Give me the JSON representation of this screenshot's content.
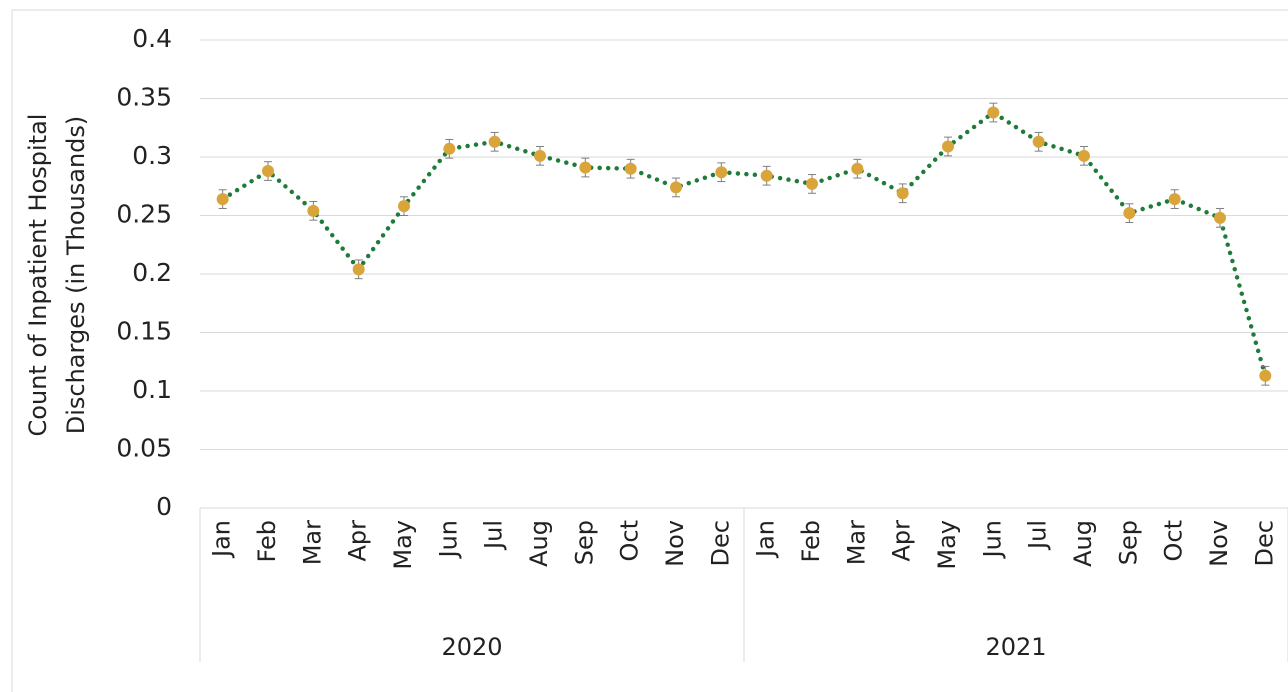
{
  "chart_data": {
    "type": "line",
    "ylabel": [
      "Count of Inpatient Hospital",
      "Discharges (in Thousands)"
    ],
    "category_groups": [
      {
        "label": "2020",
        "categories": [
          "Jan",
          "Feb",
          "Mar",
          "Apr",
          "May",
          "Jun",
          "Jul",
          "Aug",
          "Sep",
          "Oct",
          "Nov",
          "Dec"
        ]
      },
      {
        "label": "2021",
        "categories": [
          "Jan",
          "Feb",
          "Mar",
          "Apr",
          "May",
          "Jun",
          "Jul",
          "Aug",
          "Sep",
          "Oct",
          "Nov",
          "Dec"
        ]
      }
    ],
    "series": [
      {
        "color": "#1e7b3a",
        "marker_color": "#d9a43a",
        "error_color": "#7f7f7f",
        "values": [
          0.264,
          0.288,
          0.254,
          0.204,
          0.258,
          0.307,
          0.313,
          0.301,
          0.291,
          0.29,
          0.274,
          0.287,
          0.284,
          0.277,
          0.29,
          0.269,
          0.309,
          0.338,
          0.313,
          0.301,
          0.252,
          0.264,
          0.248,
          0.113
        ],
        "errors": [
          0.008,
          0.008,
          0.008,
          0.008,
          0.008,
          0.008,
          0.008,
          0.008,
          0.008,
          0.008,
          0.008,
          0.008,
          0.008,
          0.008,
          0.008,
          0.008,
          0.008,
          0.008,
          0.008,
          0.008,
          0.008,
          0.008,
          0.008,
          0.008
        ]
      }
    ],
    "ylim": [
      0,
      0.4
    ],
    "yticks": [
      0,
      0.05,
      0.1,
      0.15,
      0.2,
      0.25,
      0.3,
      0.35,
      0.4
    ],
    "grid": true
  }
}
